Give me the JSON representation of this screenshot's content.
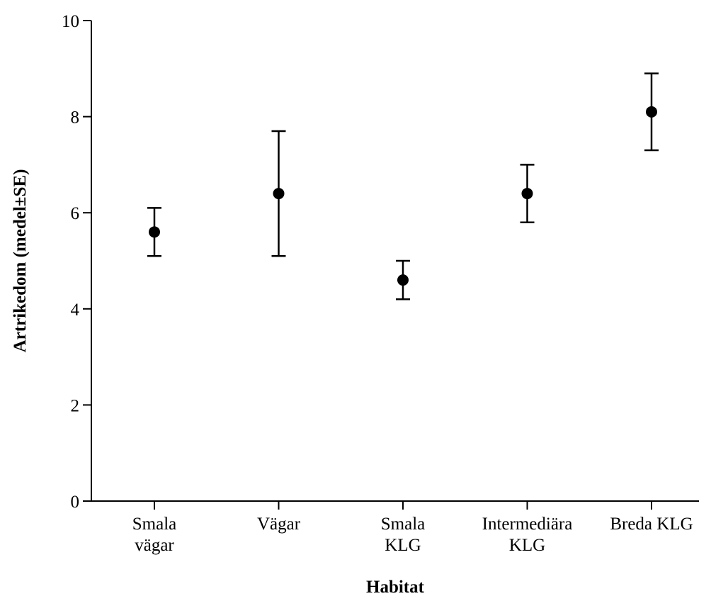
{
  "chart_data": {
    "type": "scatter",
    "title": "",
    "xlabel": "Habitat",
    "ylabel": "Artrikedom (medel±SE)",
    "ylim": [
      0,
      10
    ],
    "yticks": [
      "0",
      "2",
      "4",
      "6",
      "8",
      "10"
    ],
    "grid": false,
    "categories": [
      [
        "Smala",
        "vägar"
      ],
      [
        "Vägar"
      ],
      [
        "Smala",
        "KLG"
      ],
      [
        "Intermediära",
        "KLG"
      ],
      [
        "Breda KLG"
      ]
    ],
    "series": [
      {
        "values": [
          5.6,
          6.4,
          4.6,
          6.4,
          8.1
        ],
        "error_low": [
          5.1,
          5.1,
          4.2,
          5.8,
          7.3
        ],
        "error_high": [
          6.1,
          7.7,
          5.0,
          7.0,
          8.9
        ]
      }
    ]
  }
}
